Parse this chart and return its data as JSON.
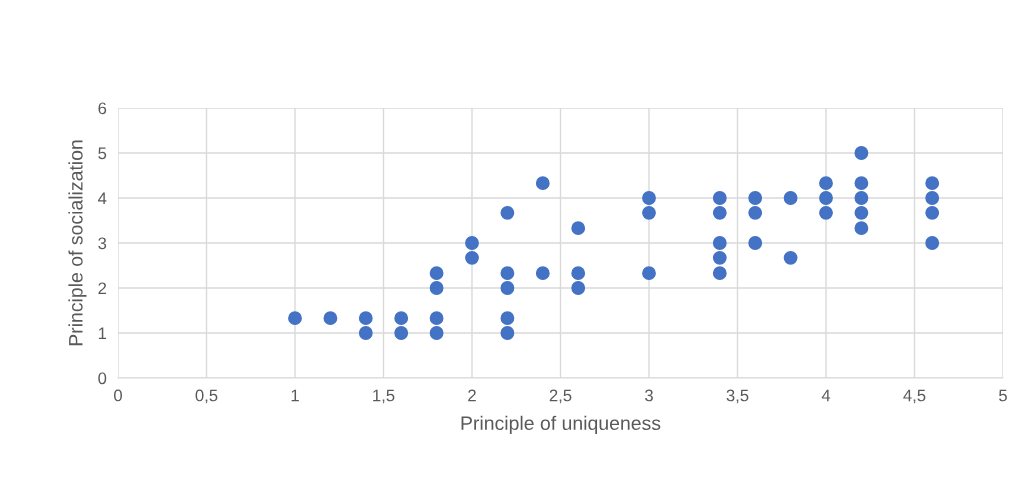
{
  "chart_data": {
    "type": "scatter",
    "xlabel": "Principle of uniqueness",
    "ylabel": "Principle of socialization",
    "series": [
      {
        "color": "#4472c4",
        "x": [
          1,
          1.2,
          1.4,
          1.4,
          1.6,
          1.6,
          1.8,
          1.8,
          1.8,
          1.8,
          2,
          2,
          2.2,
          2.2,
          2.2,
          2.2,
          2.2,
          2.4,
          2.4,
          2.6,
          2.6,
          2.6,
          3,
          3,
          3,
          3.4,
          3.4,
          3.4,
          3.4,
          3.4,
          3.6,
          3.6,
          3.6,
          3.8,
          3.8,
          4,
          4,
          4,
          4.2,
          4.2,
          4.2,
          4.2,
          4.2,
          4.6,
          4.6,
          4.6,
          4.6
        ],
        "values": [
          1.33,
          1.33,
          1.33,
          1,
          1.33,
          1,
          2.33,
          2,
          1.33,
          1,
          3,
          2.67,
          3.67,
          2.33,
          2,
          1.33,
          1,
          4.33,
          2.33,
          3.33,
          2.33,
          2,
          4,
          3.67,
          2.33,
          4,
          3.67,
          3,
          2.67,
          2.33,
          4,
          3.67,
          3,
          4,
          2.67,
          4.33,
          4,
          3.67,
          5,
          4.33,
          4,
          3.67,
          3.33,
          4.33,
          4,
          3.67,
          3
        ]
      }
    ],
    "xlim": [
      0,
      5
    ],
    "ylim": [
      0,
      6
    ],
    "xticks": [
      0,
      {
        "value": 0.5,
        "label": "0,5"
      },
      1,
      {
        "value": 1.5,
        "label": "1,5"
      },
      2,
      {
        "value": 2.5,
        "label": "2,5"
      },
      3,
      {
        "value": 3.5,
        "label": "3,5"
      },
      4,
      {
        "value": 4.5,
        "label": "4,5"
      },
      5
    ],
    "yticks": [
      0,
      1,
      2,
      3,
      4,
      5,
      6
    ],
    "grid": true,
    "marker": "circle"
  }
}
